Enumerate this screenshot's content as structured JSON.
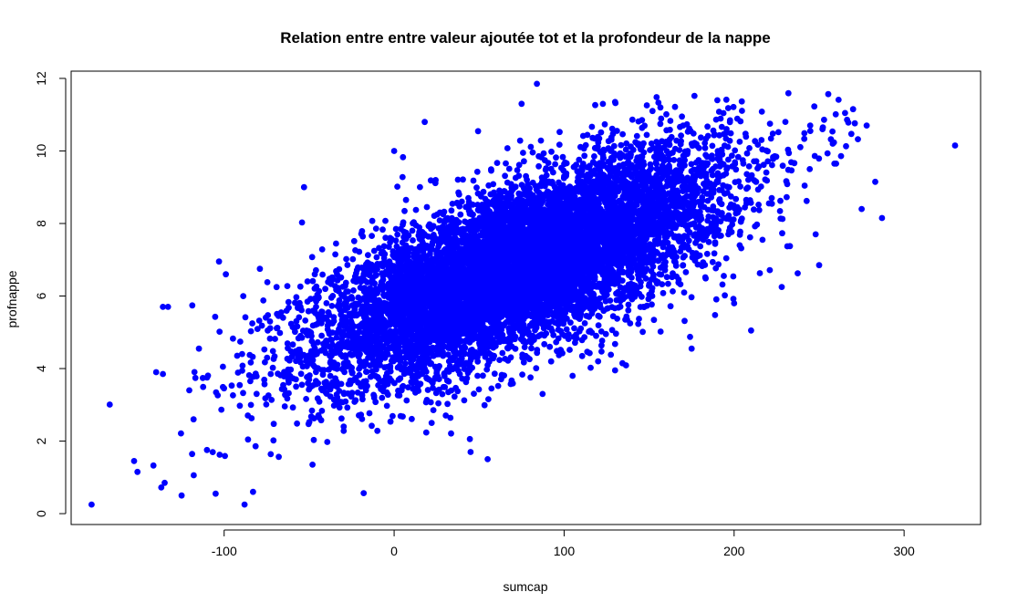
{
  "chart_data": {
    "type": "scatter",
    "title": "Relation entre entre valeur ajoutée tot et la profondeur de la nappe",
    "xlabel": "sumcap",
    "ylabel": "profnappe",
    "xlim": [
      -190,
      345
    ],
    "ylim": [
      -0.3,
      12.2
    ],
    "x_ticks": [
      -100,
      0,
      100,
      200,
      300
    ],
    "x_tick_labels": [
      "-100",
      "0",
      "100",
      "200",
      "300"
    ],
    "y_ticks": [
      0,
      2,
      4,
      6,
      8,
      10,
      12
    ],
    "y_tick_labels": [
      "0",
      "2",
      "4",
      "6",
      "8",
      "10",
      "12"
    ],
    "grid": false,
    "legend": "none",
    "marker_color": "#0000FF",
    "bulk_distribution": {
      "point_count": 9000,
      "x_mean": 75,
      "x_sd": 60,
      "y_intercept": 5.5,
      "y_slope": 0.018,
      "y_residual_sd": 1.1
    },
    "series": [
      {
        "values": [
          {
            "x": -178,
            "y": 0.25
          },
          {
            "x": -153,
            "y": 1.45
          },
          {
            "x": -151,
            "y": 1.15
          },
          {
            "x": -137,
            "y": 0.72
          },
          {
            "x": -135,
            "y": 0.85
          },
          {
            "x": -133,
            "y": 5.7
          },
          {
            "x": -136,
            "y": 5.7
          },
          {
            "x": -140,
            "y": 3.9
          },
          {
            "x": -136,
            "y": 3.85
          },
          {
            "x": -125,
            "y": 0.5
          },
          {
            "x": -118,
            "y": 2.6
          },
          {
            "x": -105,
            "y": 0.55
          },
          {
            "x": -103,
            "y": 6.95
          },
          {
            "x": -99,
            "y": 6.6
          },
          {
            "x": -88,
            "y": 0.25
          },
          {
            "x": -83,
            "y": 0.6
          },
          {
            "x": -53,
            "y": 9.0
          },
          {
            "x": -48,
            "y": 1.35
          },
          {
            "x": 0,
            "y": 10.0
          },
          {
            "x": 18,
            "y": 10.8
          },
          {
            "x": 45,
            "y": 1.7
          },
          {
            "x": 55,
            "y": 1.5
          },
          {
            "x": 84,
            "y": 11.85
          },
          {
            "x": 75,
            "y": 11.3
          },
          {
            "x": 130,
            "y": 11.35
          },
          {
            "x": 152,
            "y": 11.1
          },
          {
            "x": 170,
            "y": 10.7
          },
          {
            "x": 200,
            "y": 5.8
          },
          {
            "x": 210,
            "y": 5.05
          },
          {
            "x": 228,
            "y": 6.25
          },
          {
            "x": 248,
            "y": 7.7
          },
          {
            "x": 250,
            "y": 6.85
          },
          {
            "x": 252,
            "y": 10.6
          },
          {
            "x": 258,
            "y": 10.2
          },
          {
            "x": 259,
            "y": 9.65
          },
          {
            "x": 270,
            "y": 11.15
          },
          {
            "x": 275,
            "y": 8.4
          },
          {
            "x": 278,
            "y": 10.7
          },
          {
            "x": 283,
            "y": 9.15
          },
          {
            "x": 287,
            "y": 8.15
          },
          {
            "x": 330,
            "y": 10.15
          },
          {
            "x": 260,
            "y": 9.65
          },
          {
            "x": 175,
            "y": 4.55
          },
          {
            "x": 120,
            "y": 4.2
          },
          {
            "x": 130,
            "y": 3.95
          },
          {
            "x": 105,
            "y": 3.8
          }
        ]
      }
    ]
  }
}
